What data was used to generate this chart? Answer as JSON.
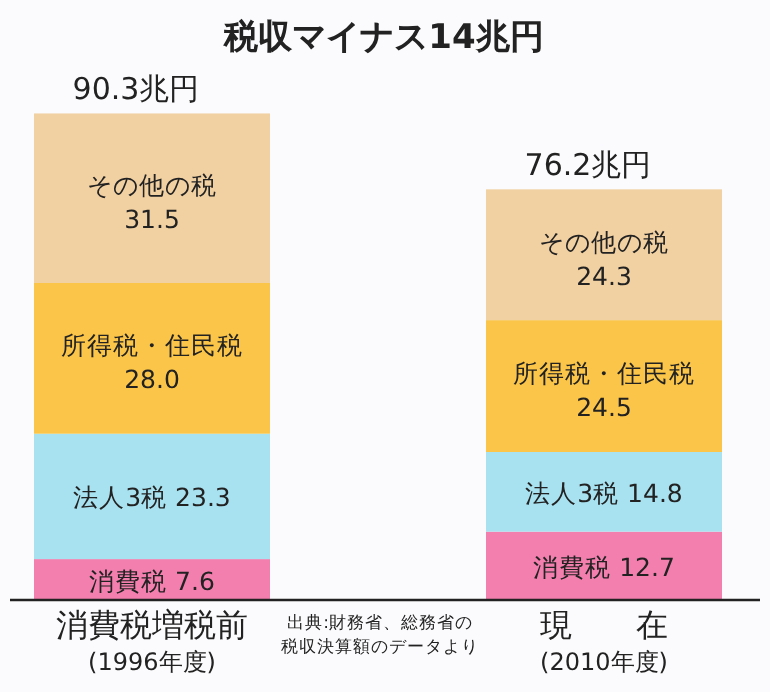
{
  "chart_data": {
    "type": "bar",
    "stacked": true,
    "title": "税収マイナス14兆円",
    "categories": [
      "消費税増税前\n(1996年度)",
      "現　　在\n(2010年度)"
    ],
    "ylim": [
      0,
      90.3
    ],
    "series": [
      {
        "name": "消費税",
        "color": "#f27fae",
        "values": [
          7.6,
          12.7
        ],
        "value_labels": [
          "7.6",
          "12.7"
        ]
      },
      {
        "name": "法人3税",
        "color": "#a8e2f0",
        "values": [
          23.3,
          14.8
        ],
        "value_labels": [
          "23.3",
          "14.8"
        ]
      },
      {
        "name": "所得税・住民税",
        "color": "#fac548",
        "values": [
          28.0,
          24.5
        ],
        "value_labels": [
          "28.0",
          "24.5"
        ]
      },
      {
        "name": "その他の税",
        "color": "#f1d0a2",
        "values": [
          31.5,
          24.3
        ],
        "value_labels": [
          "31.5",
          "24.3"
        ]
      }
    ],
    "totals": [
      "90.3兆円",
      "76.2兆円"
    ],
    "annotations": [
      "出典:財務省、総務省の税収決算額のデータより"
    ]
  }
}
